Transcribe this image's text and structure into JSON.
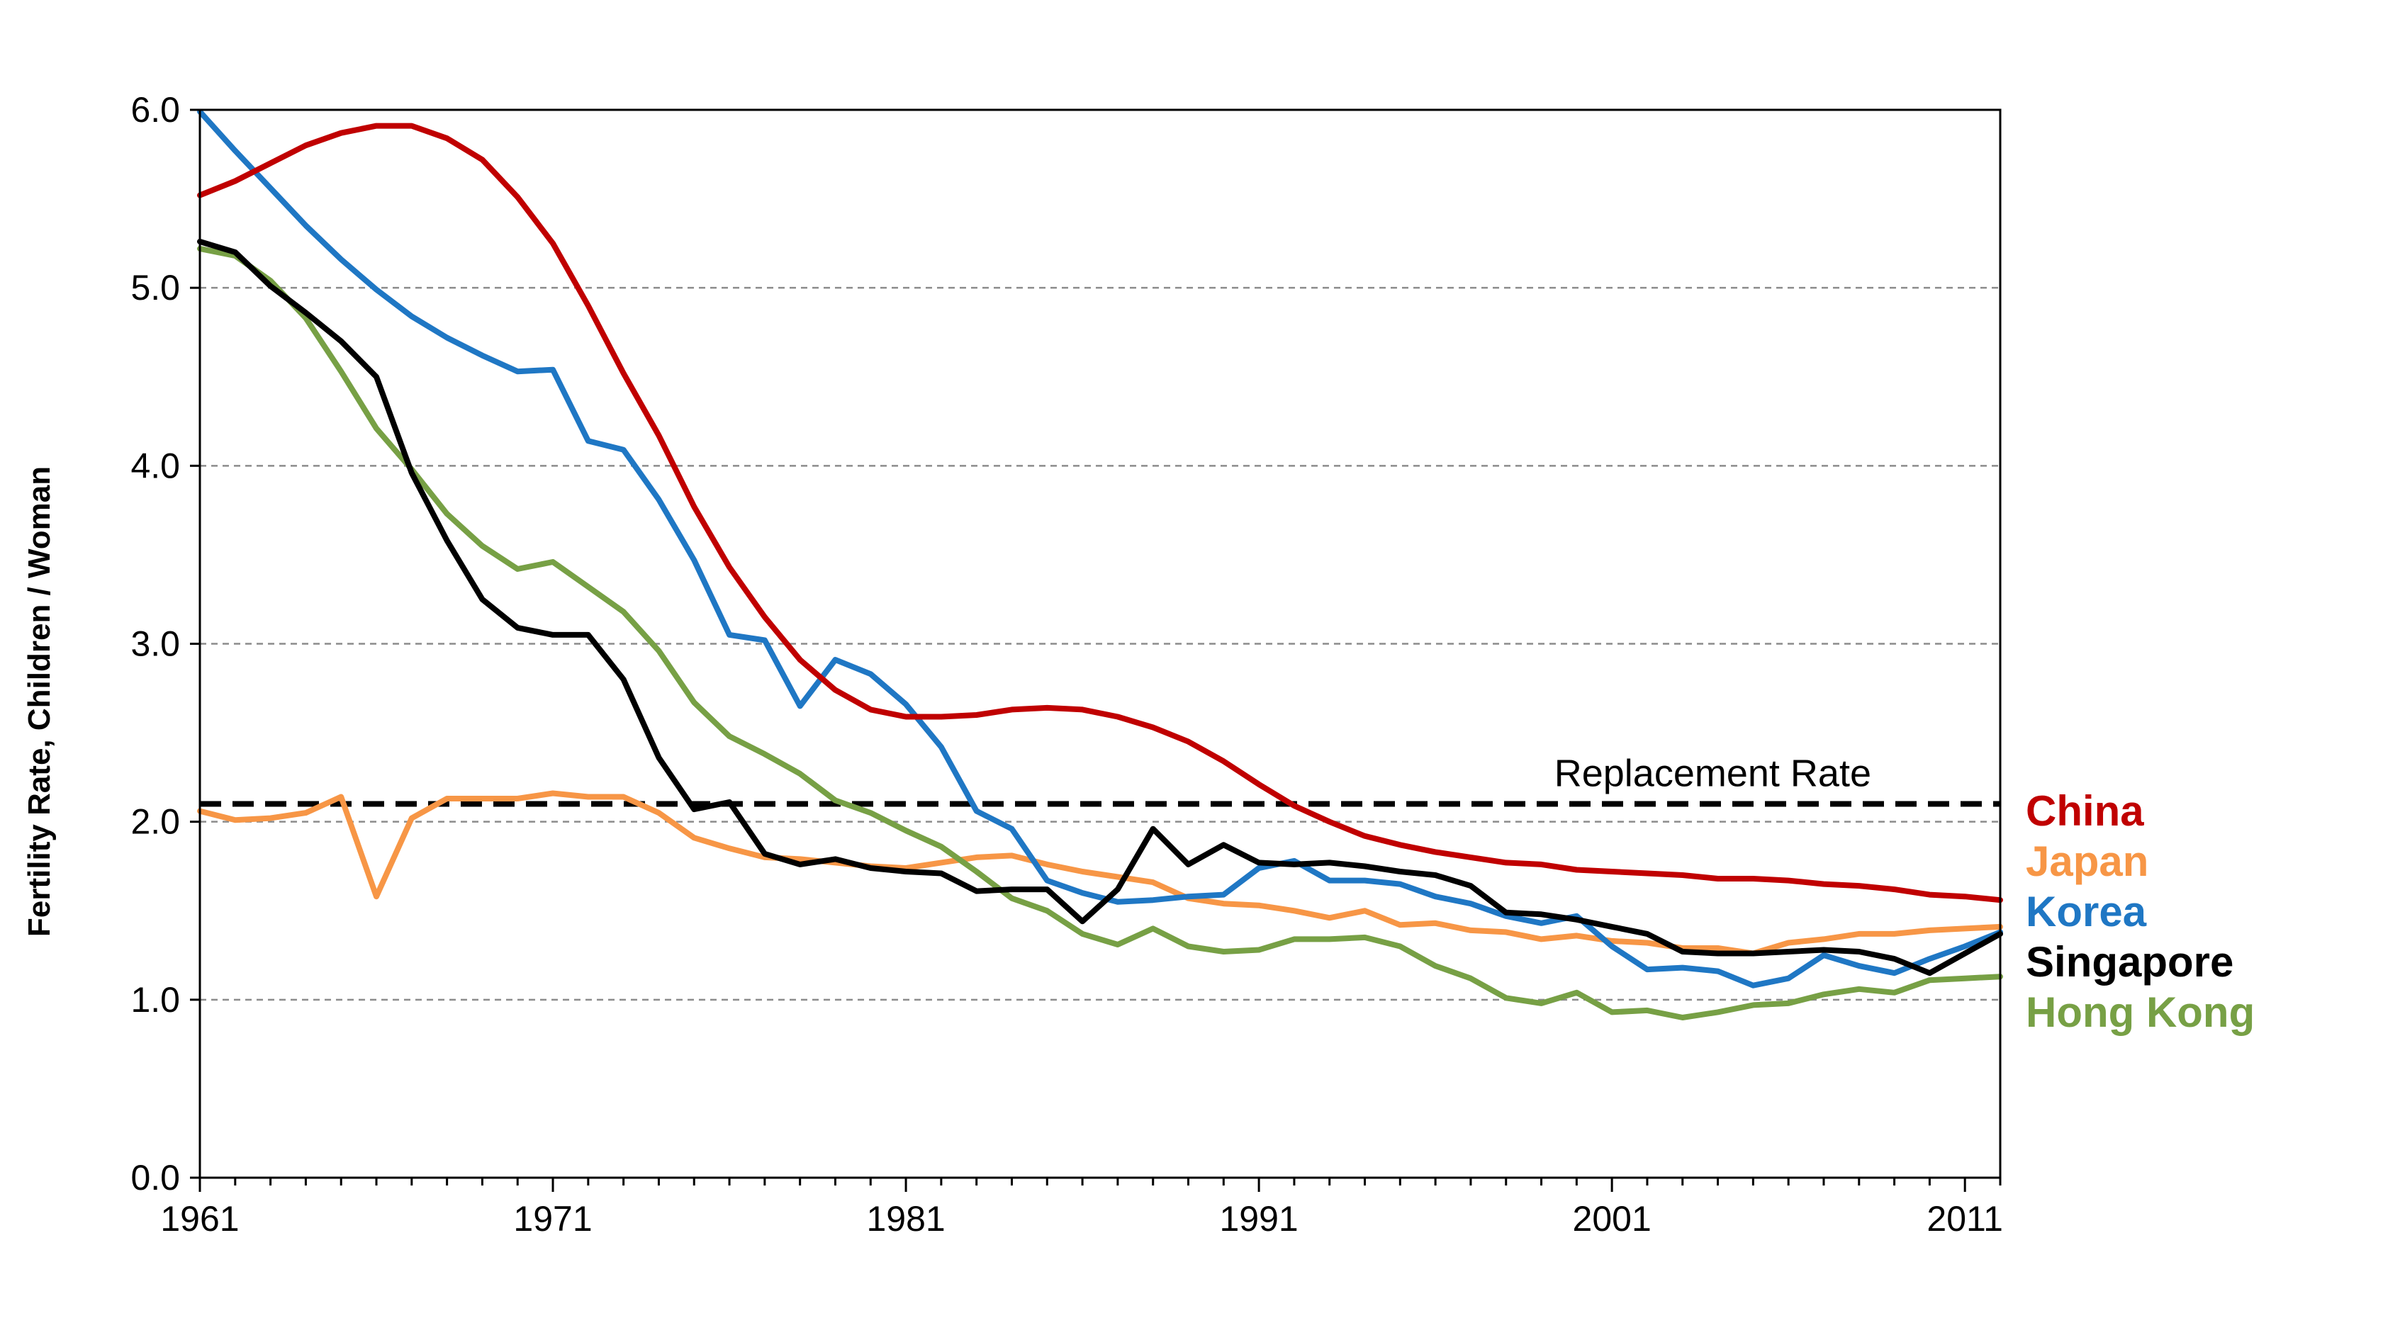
{
  "chart_data": {
    "type": "line",
    "title": "",
    "xlabel": "",
    "ylabel": "Fertility Rate, Children / Woman",
    "xlim": [
      1961,
      2012
    ],
    "ylim": [
      0,
      6
    ],
    "x_ticks": [
      1961,
      1971,
      1981,
      1991,
      2001,
      2011
    ],
    "y_ticks": [
      "0.0",
      "1.0",
      "2.0",
      "3.0",
      "4.0",
      "5.0",
      "6.0"
    ],
    "grid": "horizontal dashed",
    "legend_placement": "right",
    "reference_line": {
      "label": "Replacement Rate",
      "value": 2.1
    },
    "x": [
      1961,
      1962,
      1963,
      1964,
      1965,
      1966,
      1967,
      1968,
      1969,
      1970,
      1971,
      1972,
      1973,
      1974,
      1975,
      1976,
      1977,
      1978,
      1979,
      1980,
      1981,
      1982,
      1983,
      1984,
      1985,
      1986,
      1987,
      1988,
      1989,
      1990,
      1991,
      1992,
      1993,
      1994,
      1995,
      1996,
      1997,
      1998,
      1999,
      2000,
      2001,
      2002,
      2003,
      2004,
      2005,
      2006,
      2007,
      2008,
      2009,
      2010,
      2011,
      2012
    ],
    "series": [
      {
        "name": "China",
        "color": "#c00000",
        "values": [
          5.52,
          5.6,
          5.7,
          5.8,
          5.87,
          5.91,
          5.91,
          5.84,
          5.72,
          5.51,
          5.25,
          4.9,
          4.52,
          4.17,
          3.77,
          3.43,
          3.15,
          2.91,
          2.74,
          2.63,
          2.59,
          2.59,
          2.6,
          2.63,
          2.64,
          2.63,
          2.59,
          2.53,
          2.45,
          2.34,
          2.21,
          2.09,
          2.0,
          1.92,
          1.87,
          1.83,
          1.8,
          1.77,
          1.76,
          1.73,
          1.72,
          1.71,
          1.7,
          1.68,
          1.68,
          1.67,
          1.65,
          1.64,
          1.62,
          1.59,
          1.58,
          1.56
        ]
      },
      {
        "name": "Japan",
        "color": "#f79646",
        "values": [
          2.06,
          2.01,
          2.02,
          2.05,
          2.14,
          1.58,
          2.02,
          2.13,
          2.13,
          2.13,
          2.16,
          2.14,
          2.14,
          2.05,
          1.91,
          1.85,
          1.8,
          1.79,
          1.77,
          1.75,
          1.74,
          1.77,
          1.8,
          1.81,
          1.76,
          1.72,
          1.69,
          1.66,
          1.57,
          1.54,
          1.53,
          1.5,
          1.46,
          1.5,
          1.42,
          1.43,
          1.39,
          1.38,
          1.34,
          1.36,
          1.33,
          1.32,
          1.29,
          1.29,
          1.26,
          1.32,
          1.34,
          1.37,
          1.37,
          1.39,
          1.4,
          1.41
        ]
      },
      {
        "name": "Korea",
        "color": "#1f77c4",
        "values": [
          5.99,
          5.77,
          5.56,
          5.35,
          5.16,
          4.99,
          4.84,
          4.72,
          4.62,
          4.53,
          4.54,
          4.14,
          4.09,
          3.81,
          3.47,
          3.05,
          3.02,
          2.65,
          2.91,
          2.83,
          2.66,
          2.42,
          2.06,
          1.96,
          1.67,
          1.6,
          1.55,
          1.56,
          1.58,
          1.59,
          1.74,
          1.78,
          1.67,
          1.67,
          1.65,
          1.58,
          1.54,
          1.47,
          1.43,
          1.47,
          1.3,
          1.17,
          1.18,
          1.16,
          1.08,
          1.12,
          1.25,
          1.19,
          1.15,
          1.23,
          1.3,
          1.38
        ]
      },
      {
        "name": "Singapore",
        "color": "#000000",
        "values": [
          5.26,
          5.2,
          5.01,
          4.86,
          4.7,
          4.5,
          3.96,
          3.58,
          3.25,
          3.09,
          3.05,
          3.05,
          2.8,
          2.36,
          2.07,
          2.11,
          1.82,
          1.76,
          1.79,
          1.74,
          1.72,
          1.71,
          1.61,
          1.62,
          1.62,
          1.44,
          1.62,
          1.96,
          1.76,
          1.87,
          1.77,
          1.76,
          1.77,
          1.75,
          1.72,
          1.7,
          1.64,
          1.49,
          1.48,
          1.45,
          1.41,
          1.37,
          1.27,
          1.26,
          1.26,
          1.27,
          1.28,
          1.27,
          1.23,
          1.15,
          1.26,
          1.37
        ]
      },
      {
        "name": "Hong Kong",
        "color": "#77a045",
        "values": [
          5.22,
          5.18,
          5.04,
          4.83,
          4.53,
          4.21,
          3.98,
          3.73,
          3.55,
          3.42,
          3.46,
          3.32,
          3.18,
          2.96,
          2.67,
          2.48,
          2.38,
          2.27,
          2.12,
          2.05,
          1.95,
          1.86,
          1.72,
          1.57,
          1.5,
          1.37,
          1.31,
          1.4,
          1.3,
          1.27,
          1.28,
          1.34,
          1.34,
          1.35,
          1.3,
          1.19,
          1.12,
          1.01,
          0.98,
          1.04,
          0.93,
          0.94,
          0.9,
          0.93,
          0.97,
          0.98,
          1.03,
          1.06,
          1.04,
          1.11,
          1.12,
          1.13
        ]
      }
    ]
  }
}
